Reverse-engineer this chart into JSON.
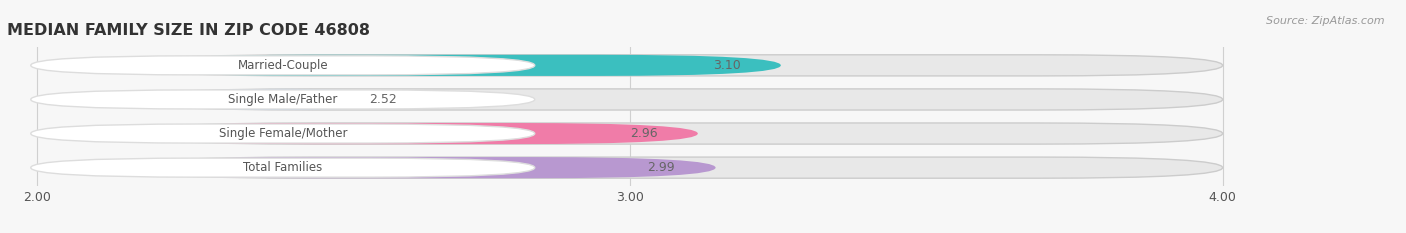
{
  "title": "MEDIAN FAMILY SIZE IN ZIP CODE 46808",
  "source": "Source: ZipAtlas.com",
  "categories": [
    "Married-Couple",
    "Single Male/Father",
    "Single Female/Mother",
    "Total Families"
  ],
  "values": [
    3.1,
    2.52,
    2.96,
    2.99
  ],
  "bar_colors": [
    "#3bbfbf",
    "#b8cfe8",
    "#f07ca8",
    "#b898d0"
  ],
  "bar_bg_color": "#e8e8e8",
  "xlim": [
    2.0,
    4.0
  ],
  "xticks": [
    2.0,
    3.0,
    4.0
  ],
  "background_color": "#f7f7f7",
  "label_color": "#555555",
  "value_color": "#666666",
  "title_color": "#333333",
  "bar_height": 0.62,
  "grid_color": "#d0d0d0"
}
